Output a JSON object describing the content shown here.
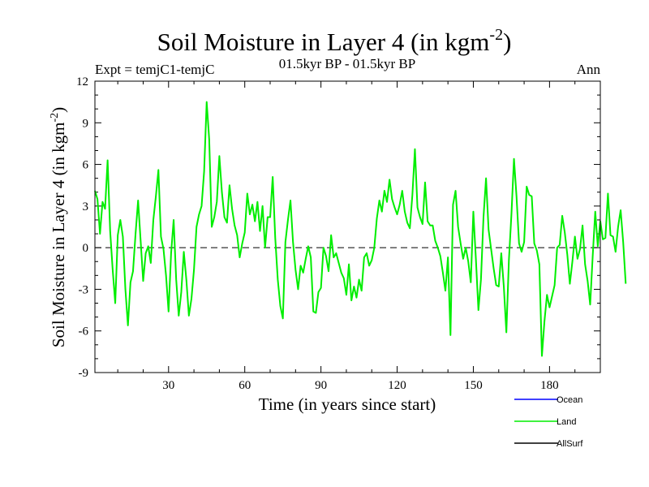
{
  "chart_data": {
    "type": "line",
    "title": "Soil Moisture in Layer 4 (in kgm",
    "title_superscript": "-2",
    "title_close": ")",
    "experiment": "Expt = temjC1-temjC",
    "period": "01.5kyr BP - 01.5kyr BP",
    "season": "Ann",
    "xlabel": "Time (in years since start)",
    "ylabel": "Soil Moisture in Layer 4 (in kgm",
    "ylabel_superscript": "-2",
    "ylabel_close": ")",
    "xlim": [
      1,
      200
    ],
    "ylim": [
      -9,
      12
    ],
    "x_ticks": [
      30,
      60,
      90,
      120,
      150,
      180
    ],
    "x_tick_labels": [
      "30",
      "60",
      "90",
      "120",
      "150",
      "180"
    ],
    "y_ticks": [
      -9,
      -6,
      -3,
      0,
      3,
      6,
      9,
      12
    ],
    "y_tick_labels": [
      "-9",
      "-6",
      "-3",
      "0",
      "3",
      "6",
      "9",
      "12"
    ],
    "zero_line": "dashed",
    "legend": [
      {
        "name": "Ocean",
        "color": "#0000ff"
      },
      {
        "name": "Land",
        "color": "#00ee00"
      },
      {
        "name": "AllSurf",
        "color": "#000000"
      }
    ],
    "series": [
      {
        "name": "Land",
        "color": "#00ee00",
        "x_start": 1,
        "x_step": 1,
        "values": [
          4.1,
          3.5,
          1.0,
          3.3,
          2.8,
          6.3,
          1.2,
          -1.6,
          -4.0,
          0.9,
          2.0,
          0.8,
          -3.0,
          -5.6,
          -2.5,
          -1.7,
          1.0,
          3.4,
          0.5,
          -2.4,
          -0.4,
          0.1,
          -1.1,
          2.0,
          3.7,
          5.6,
          0.8,
          -0.1,
          -2.0,
          -4.6,
          -0.4,
          2.0,
          -2.3,
          -4.9,
          -3.2,
          -0.3,
          -2.3,
          -4.9,
          -3.7,
          -1.6,
          1.5,
          2.4,
          3.0,
          5.5,
          10.5,
          7.8,
          1.5,
          2.2,
          3.3,
          6.6,
          4.0,
          2.2,
          1.8,
          4.5,
          2.8,
          1.6,
          0.9,
          -0.7,
          0.3,
          1.1,
          3.9,
          2.4,
          3.1,
          1.9,
          3.3,
          1.2,
          3.0,
          0.0,
          2.2,
          2.2,
          5.1,
          0.7,
          -2.3,
          -4.2,
          -5.1,
          0.4,
          2.0,
          3.4,
          0.4,
          -1.6,
          -3.0,
          -1.3,
          -1.8,
          -0.8,
          0.1,
          -0.7,
          -4.6,
          -4.7,
          -3.2,
          -2.9,
          0.0,
          -0.6,
          -1.7,
          0.9,
          -0.7,
          -0.4,
          -1.1,
          -1.8,
          -2.2,
          -3.4,
          -1.2,
          -3.8,
          -2.8,
          -3.6,
          -2.3,
          -3.1,
          -0.7,
          -0.4,
          -1.3,
          -0.9,
          0.0,
          2.1,
          3.4,
          2.6,
          4.1,
          3.3,
          4.9,
          3.5,
          2.9,
          2.4,
          3.1,
          4.1,
          2.6,
          1.8,
          1.4,
          3.8,
          7.1,
          2.9,
          2.2,
          1.7,
          4.7,
          1.9,
          1.6,
          1.6,
          0.5,
          0.0,
          -0.6,
          -1.8,
          -3.1,
          -0.7,
          -6.3,
          3.1,
          4.1,
          1.5,
          0.3,
          -0.8,
          0.0,
          -1.0,
          -2.5,
          2.6,
          -0.8,
          -4.5,
          -2.3,
          2.2,
          5.0,
          1.3,
          -0.1,
          -1.5,
          -2.7,
          -2.8,
          -0.4,
          -2.8,
          -6.1,
          -0.9,
          2.4,
          6.4,
          3.7,
          0.3,
          -0.3,
          0.4,
          4.4,
          3.8,
          3.7,
          0.3,
          -0.2,
          -1.2,
          -7.8,
          -5.3,
          -3.4,
          -4.3,
          -3.5,
          -2.7,
          0.0,
          0.2,
          2.3,
          1.1,
          -0.5,
          -2.6,
          -1.0,
          0.8,
          -0.8,
          -0.1,
          1.6,
          -1.2,
          -2.4,
          -4.1,
          -0.6,
          2.6,
          0.1,
          1.9,
          0.6,
          0.7,
          3.9,
          0.9,
          0.8,
          -0.3,
          1.5,
          2.7,
          0.4,
          -2.6
        ]
      }
    ]
  }
}
